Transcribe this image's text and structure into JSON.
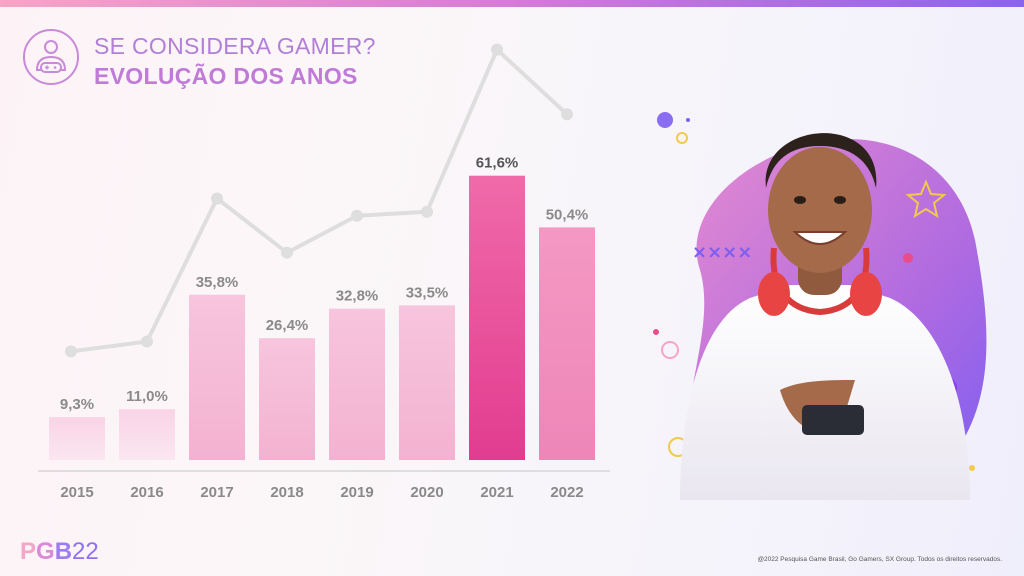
{
  "header": {
    "title_line1": "SE CONSIDERA GAMER?",
    "title_line2": "EVOLUÇÃO DOS ANOS",
    "icon": "gamer-person-icon"
  },
  "chart_data": {
    "type": "bar",
    "categories": [
      "2015",
      "2016",
      "2017",
      "2018",
      "2019",
      "2020",
      "2021",
      "2022"
    ],
    "values": [
      9.3,
      11.0,
      35.8,
      26.4,
      32.8,
      33.5,
      61.6,
      50.4
    ],
    "value_labels": [
      "9,3%",
      "11,0%",
      "35,8%",
      "26,4%",
      "32,8%",
      "33,5%",
      "61,6%",
      "50,4%"
    ],
    "ylim": [
      0,
      65
    ],
    "highlight_index": 6,
    "trend_line": true,
    "colors": {
      "bar_light": "#fbe2ee",
      "bar_mid": "#f6bcd8",
      "bar_highlight": "#e8459a",
      "bar_2022": "#f08cbd",
      "trend_line": "#dedede",
      "label": "#8a8a8a",
      "label_highlight": "#555555"
    }
  },
  "photo": {
    "icon": "smiling-young-man-with-headphones-and-phone"
  },
  "footer": {
    "logo_p": "P",
    "logo_g": "G",
    "logo_b": "B",
    "logo_n": "22",
    "copyright": "@2022 Pesquisa Game Brasil, Go Gamers, SX Group. Todos os direitos reservados."
  }
}
